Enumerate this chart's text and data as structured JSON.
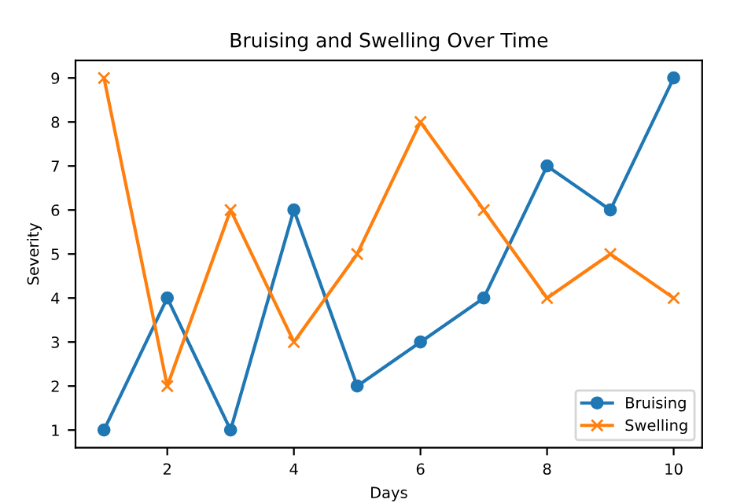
{
  "chart_data": {
    "type": "line",
    "title": "Bruising and Swelling Over Time",
    "xlabel": "Days",
    "ylabel": "Severity",
    "x": [
      1,
      2,
      3,
      4,
      5,
      6,
      7,
      8,
      9,
      10
    ],
    "series": [
      {
        "name": "Bruising",
        "color": "#1f77b4",
        "marker": "circle",
        "values": [
          1,
          4,
          1,
          6,
          2,
          3,
          4,
          7,
          6,
          9
        ]
      },
      {
        "name": "Swelling",
        "color": "#ff7f0e",
        "marker": "cross",
        "values": [
          9,
          2,
          6,
          3,
          5,
          8,
          6,
          4,
          5,
          4
        ]
      }
    ],
    "xlim": [
      0.55,
      10.45
    ],
    "xticks": [
      2,
      4,
      6,
      8,
      10
    ],
    "ylim": [
      0.6,
      9.4
    ],
    "yticks": [
      1,
      2,
      3,
      4,
      5,
      6,
      7,
      8,
      9
    ],
    "grid": false,
    "legend": "lower right",
    "line_style": "solid"
  }
}
